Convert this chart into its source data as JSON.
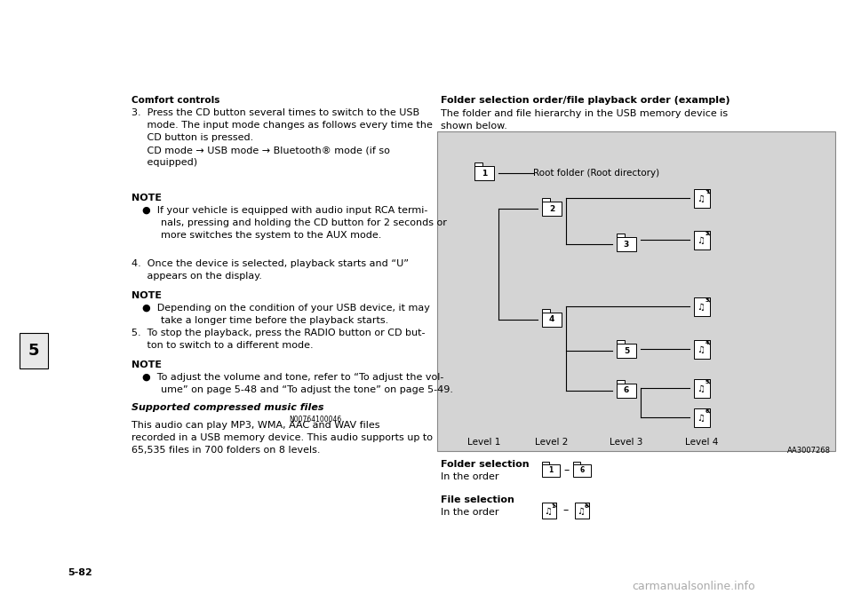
{
  "page_bg": "#ffffff",
  "header_text": "Comfort controls",
  "page_number": "5-82",
  "chapter_num": "5",
  "diagram_bg": "#d8d8d8",
  "aa_code": "AA3007268",
  "watermark": "carmanualsonline.info"
}
